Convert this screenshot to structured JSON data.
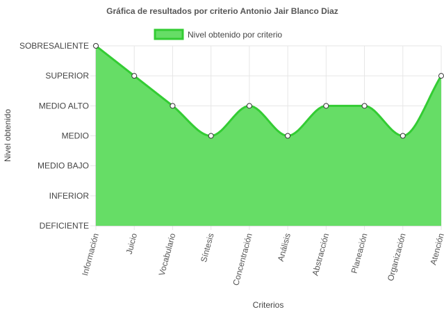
{
  "chart_data": {
    "type": "area",
    "title": "Gráfica de resultados por criterio Antonio Jair Blanco Diaz",
    "xlabel": "Criterios",
    "ylabel": "Nivel obtenido",
    "y_levels": [
      "DEFICIENTE",
      "INFERIOR",
      "MEDIO BAJO",
      "MEDIO",
      "MEDIO ALTO",
      "SUPERIOR",
      "SOBRESALIENTE"
    ],
    "ylim": [
      0,
      6
    ],
    "categories": [
      "Información",
      "Juicio",
      "Vocabulario",
      "Síntesis",
      "Concentración",
      "Análisis",
      "Abstracción",
      "Planeación",
      "Organización",
      "Atención"
    ],
    "series": [
      {
        "name": "Nivel obtenido por criterio",
        "values": [
          6,
          5,
          4,
          3,
          4,
          3,
          4,
          4,
          3,
          5
        ],
        "labels": [
          "SOBRESALIENTE",
          "SUPERIOR",
          "MEDIO ALTO",
          "MEDIO",
          "MEDIO ALTO",
          "MEDIO",
          "MEDIO ALTO",
          "MEDIO ALTO",
          "MEDIO",
          "SUPERIOR"
        ]
      }
    ],
    "colors": {
      "fill": "#66dd66",
      "line": "#33cc33",
      "grid": "#e6e6e6",
      "axis": "#bbbbbb"
    },
    "grid": true,
    "legend_position": "top"
  }
}
